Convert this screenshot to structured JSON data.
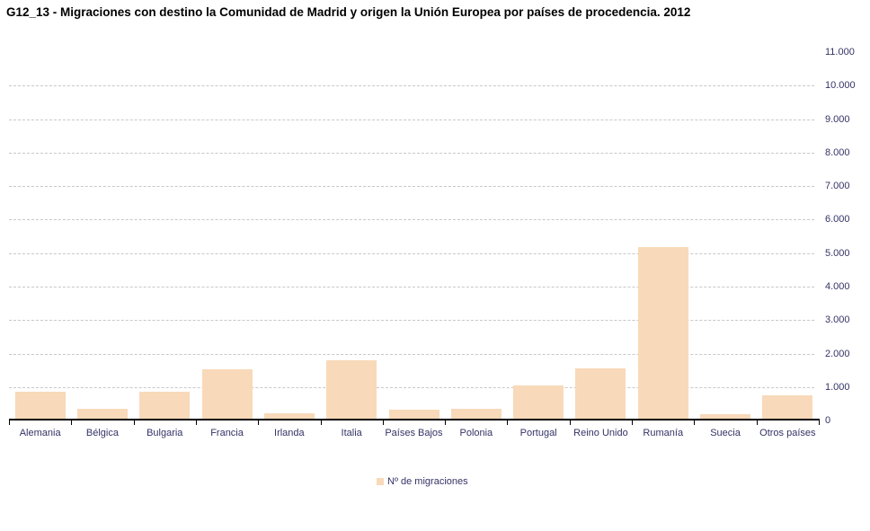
{
  "chart_data": {
    "type": "bar",
    "title": "G12_13 - Migraciones con destino la Comunidad de Madrid y origen la Unión Europea por países de procedencia. 2012",
    "series_name": "Nº de migraciones",
    "categories": [
      "Alemania",
      "Bélgica",
      "Bulgaria",
      "Francia",
      "Irlanda",
      "Italia",
      "Países Bajos",
      "Polonia",
      "Portugal",
      "Reino Unido",
      "Rumanía",
      "Suecia",
      "Otros países"
    ],
    "values": [
      860,
      350,
      850,
      1520,
      220,
      1810,
      310,
      350,
      1040,
      1560,
      5180,
      190,
      740
    ],
    "xlabel": "",
    "ylabel": "",
    "ylim": [
      0,
      11000
    ],
    "y_tick_step": 1000,
    "y_tick_labels": [
      "0",
      "1.000",
      "2.000",
      "3.000",
      "4.000",
      "5.000",
      "6.000",
      "7.000",
      "8.000",
      "9.000",
      "10.000",
      "11.000"
    ],
    "y_axis_side": "right",
    "grid": "horizontal dashed gridlines at 1.000 through 10.000 only",
    "legend_position": "bottom-center"
  },
  "colors": {
    "bar_fill": "#F8D9B9",
    "axis_label_text": "#333366",
    "gridline": "#C8C8C8",
    "axis_line": "#000000",
    "title_text": "#000000",
    "background": "#FFFFFF"
  }
}
